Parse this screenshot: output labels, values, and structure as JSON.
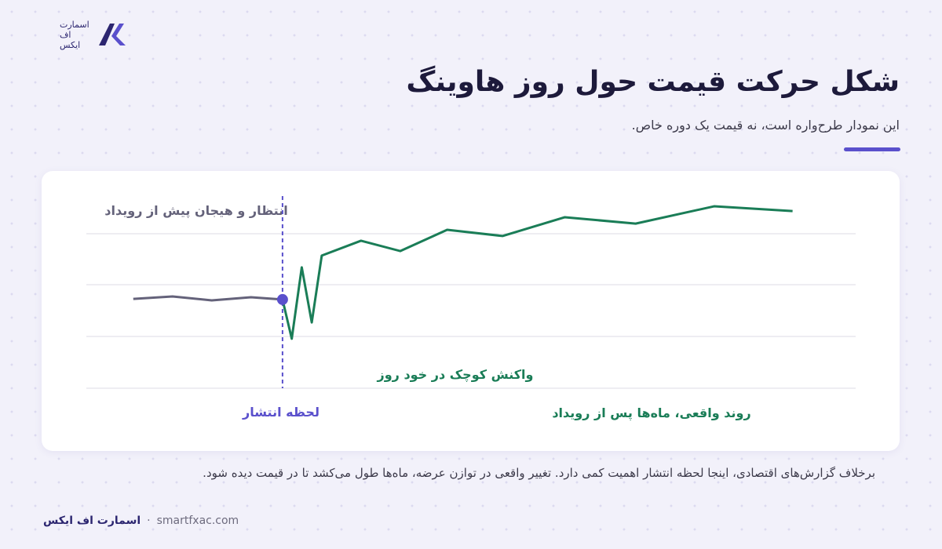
{
  "logo": {
    "lines": [
      "اسمارت",
      "اف",
      "ایکس"
    ]
  },
  "header": {
    "title": "شکل حرکت قیمت حول روز هاوینگ",
    "subtitle": "این نمودار طرح‌واره است، نه قیمت یک دوره خاص."
  },
  "chart_data": {
    "type": "line",
    "xlim": [
      0,
      100
    ],
    "ylim": [
      0,
      100
    ],
    "event_x": 25.5,
    "event_color": "#5a50cc",
    "series": [
      {
        "color": "#64627a",
        "x": [
          6.1,
          11.2,
          16.3,
          21.4,
          25.5
        ],
        "values": [
          43.3,
          44.5,
          42.6,
          44.1,
          43.0
        ]
      },
      {
        "color": "#1a7d57",
        "x": [
          25.5,
          26.7,
          28.0,
          29.3,
          30.6,
          35.7,
          40.8,
          46.9,
          54.1,
          62.2,
          71.4,
          81.6,
          91.8
        ],
        "values": [
          43.0,
          24.0,
          58.6,
          31.9,
          64.3,
          71.5,
          66.5,
          76.8,
          73.8,
          82.9,
          79.8,
          88.2,
          85.9
        ]
      }
    ],
    "annotations": [
      {
        "text": "انتظار و هیجان پیش از رویداد",
        "color": "#64627a"
      },
      {
        "text": "واکنش کوچک در خود روز",
        "color": "#1a7d57"
      },
      {
        "text": "لحظه انتشار",
        "color": "#5a50cc"
      },
      {
        "text": "روند واقعی، ماه‌ها پس از رویداد",
        "color": "#1a7d57"
      }
    ]
  },
  "caption": "برخلاف گزارش‌های اقتصادی، اینجا لحظه انتشار اهمیت کمی دارد. تغییر واقعی در توازن عرضه، ماه‌ها طول می‌کشد تا در قیمت دیده شود.",
  "footer": {
    "brand": "اسمارت اف ایکس",
    "separator": "·",
    "url": "smartfxac.com"
  }
}
